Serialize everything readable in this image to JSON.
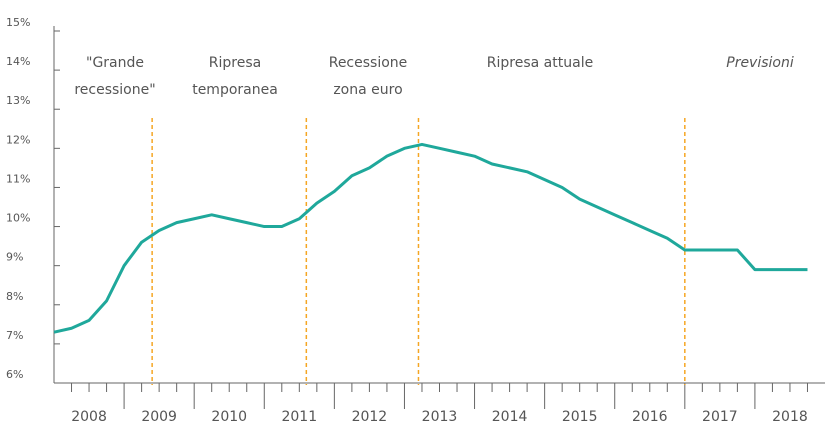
{
  "chart_data": {
    "type": "line",
    "x": [
      2008,
      2008.25,
      2008.5,
      2008.75,
      2009,
      2009.25,
      2009.5,
      2009.75,
      2010,
      2010.25,
      2010.5,
      2010.75,
      2011,
      2011.25,
      2011.5,
      2011.75,
      2012,
      2012.25,
      2012.5,
      2012.75,
      2013,
      2013.25,
      2013.5,
      2013.75,
      2014,
      2014.25,
      2014.5,
      2014.75,
      2015,
      2015.25,
      2015.5,
      2015.75,
      2016,
      2016.25,
      2016.5,
      2016.75,
      2017,
      2017.25,
      2017.5,
      2017.75,
      2018,
      2018.25,
      2018.5,
      2018.75
    ],
    "series": [
      {
        "color": "#1fa89b",
        "values": [
          7.3,
          7.4,
          7.6,
          8.1,
          9.0,
          9.6,
          9.9,
          10.1,
          10.2,
          10.3,
          10.2,
          10.1,
          10.0,
          10.0,
          10.2,
          10.6,
          10.9,
          11.3,
          11.5,
          11.8,
          12.0,
          12.1,
          12.0,
          11.9,
          11.8,
          11.6,
          11.5,
          11.4,
          11.2,
          11.0,
          10.7,
          10.5,
          10.3,
          10.1,
          9.9,
          9.7,
          9.4,
          9.4,
          9.4,
          9.4,
          8.9,
          8.9,
          8.9,
          8.9
        ]
      }
    ],
    "categories": [
      "2008",
      "2009",
      "2010",
      "2011",
      "2012",
      "2013",
      "2014",
      "2015",
      "2016",
      "2017",
      "2018"
    ],
    "xlim": [
      2008,
      2019
    ],
    "ylim": [
      6,
      15
    ],
    "yticks": [
      {
        "value": 6,
        "label": "6%"
      },
      {
        "value": 7,
        "label": "7%"
      },
      {
        "value": 8,
        "label": "8%"
      },
      {
        "value": 9,
        "label": "9%"
      },
      {
        "value": 10,
        "label": "10%"
      },
      {
        "value": 11,
        "label": "11%"
      },
      {
        "value": 12,
        "label": "12%"
      },
      {
        "value": 13,
        "label": "13%"
      },
      {
        "value": 14,
        "label": "14%"
      },
      {
        "value": 15,
        "label": "15%"
      }
    ],
    "dividers": {
      "color": "#f5a623",
      "x": [
        2009.4,
        2011.6,
        2013.2,
        2017.0
      ]
    },
    "annotations": [
      {
        "lines": [
          "\"Grande",
          "recessione\""
        ]
      },
      {
        "lines": [
          "Ripresa",
          "temporanea"
        ]
      },
      {
        "lines": [
          "Recessione",
          "zona euro"
        ]
      },
      {
        "lines": [
          "Ripresa attuale"
        ]
      },
      {
        "lines": [
          "Previsioni"
        ],
        "italic": true
      }
    ]
  }
}
